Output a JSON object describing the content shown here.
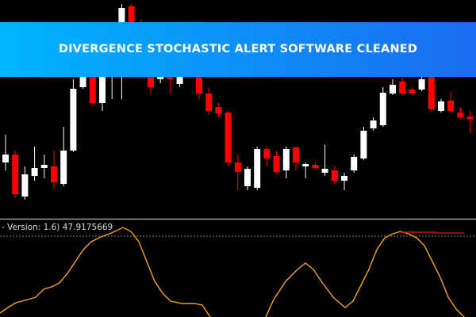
{
  "banner": {
    "title": "DIVERGENCE STOCHASTIC ALERT SOFTWARE CLEANED"
  },
  "chart_data": [
    {
      "type": "candlestick",
      "up_color": "#ffffff",
      "down_color": "#ff0000",
      "ylim": [
        0,
        275
      ],
      "open": [
        70,
        80,
        27,
        53,
        63,
        65,
        43,
        85,
        165,
        180,
        145,
        180,
        247,
        267,
        245,
        215,
        175,
        200,
        169,
        195,
        195,
        157,
        140,
        133,
        70,
        40,
        38,
        87,
        78,
        60,
        89,
        65,
        67,
        57,
        60,
        47,
        60,
        75,
        113,
        117,
        157,
        172,
        162,
        162,
        178,
        135,
        148,
        133,
        128
      ],
      "close": [
        80,
        30,
        55,
        63,
        67,
        45,
        85,
        163,
        180,
        145,
        180,
        215,
        265,
        245,
        215,
        165,
        205,
        175,
        195,
        215,
        157,
        135,
        132,
        70,
        58,
        62,
        87,
        75,
        58,
        87,
        70,
        68,
        63,
        62,
        47,
        53,
        77,
        110,
        123,
        158,
        168,
        157,
        157,
        175,
        137,
        147,
        135,
        127,
        125
      ],
      "high": [
        105,
        85,
        65,
        90,
        80,
        85,
        115,
        175,
        195,
        195,
        185,
        225,
        270,
        270,
        250,
        225,
        215,
        205,
        200,
        220,
        200,
        165,
        145,
        135,
        80,
        65,
        90,
        90,
        85,
        90,
        90,
        70,
        70,
        92,
        65,
        57,
        80,
        115,
        127,
        165,
        175,
        177,
        165,
        180,
        180,
        150,
        160,
        140,
        135
      ],
      "low": [
        60,
        25,
        23,
        47,
        50,
        37,
        40,
        83,
        163,
        143,
        135,
        150,
        150,
        235,
        205,
        157,
        170,
        157,
        165,
        185,
        150,
        130,
        127,
        65,
        35,
        35,
        35,
        65,
        55,
        50,
        60,
        50,
        60,
        53,
        43,
        35,
        57,
        73,
        110,
        115,
        155,
        155,
        155,
        160,
        135,
        133,
        133,
        125,
        107
      ]
    },
    {
      "type": "line",
      "label": "- Version: 1.6) 47.9175669",
      "xlim": [
        0,
        600
      ],
      "ylim": [
        0,
        122
      ],
      "level": 102,
      "level_color": "#888888",
      "x": [
        0,
        10,
        20,
        35,
        45,
        55,
        65,
        75,
        85,
        95,
        105,
        115,
        125,
        135,
        145,
        155,
        165,
        175,
        185,
        195,
        205,
        215,
        230,
        245,
        255,
        265,
        300,
        335,
        345,
        360,
        375,
        385,
        395,
        405,
        420,
        435,
        445,
        455,
        465,
        475,
        485,
        495,
        505,
        515,
        525,
        535,
        545,
        555,
        565,
        575,
        585
      ],
      "series": [
        {
          "color": "#f7a023",
          "values": [
            5,
            12,
            18,
            22,
            25,
            35,
            38,
            43,
            55,
            70,
            85,
            95,
            100,
            104,
            108,
            113,
            108,
            95,
            70,
            45,
            30,
            20,
            17,
            17,
            15,
            0,
            null,
            0,
            22,
            45,
            60,
            68,
            60,
            45,
            25,
            12,
            20,
            40,
            60,
            85,
            100,
            105,
            108,
            105,
            100,
            90,
            70,
            50,
            25,
            10,
            0
          ]
        },
        {
          "color": "#cc1010",
          "values": [
            null,
            null,
            null,
            null,
            null,
            null,
            null,
            null,
            null,
            null,
            null,
            null,
            null,
            null,
            null,
            null,
            null,
            null,
            null,
            null,
            null,
            null,
            null,
            null,
            null,
            null,
            null,
            null,
            null,
            null,
            null,
            null,
            null,
            null,
            null,
            null,
            null,
            null,
            null,
            null,
            null,
            null,
            107,
            107,
            107,
            107,
            107,
            106,
            106,
            106,
            106
          ]
        }
      ]
    }
  ]
}
